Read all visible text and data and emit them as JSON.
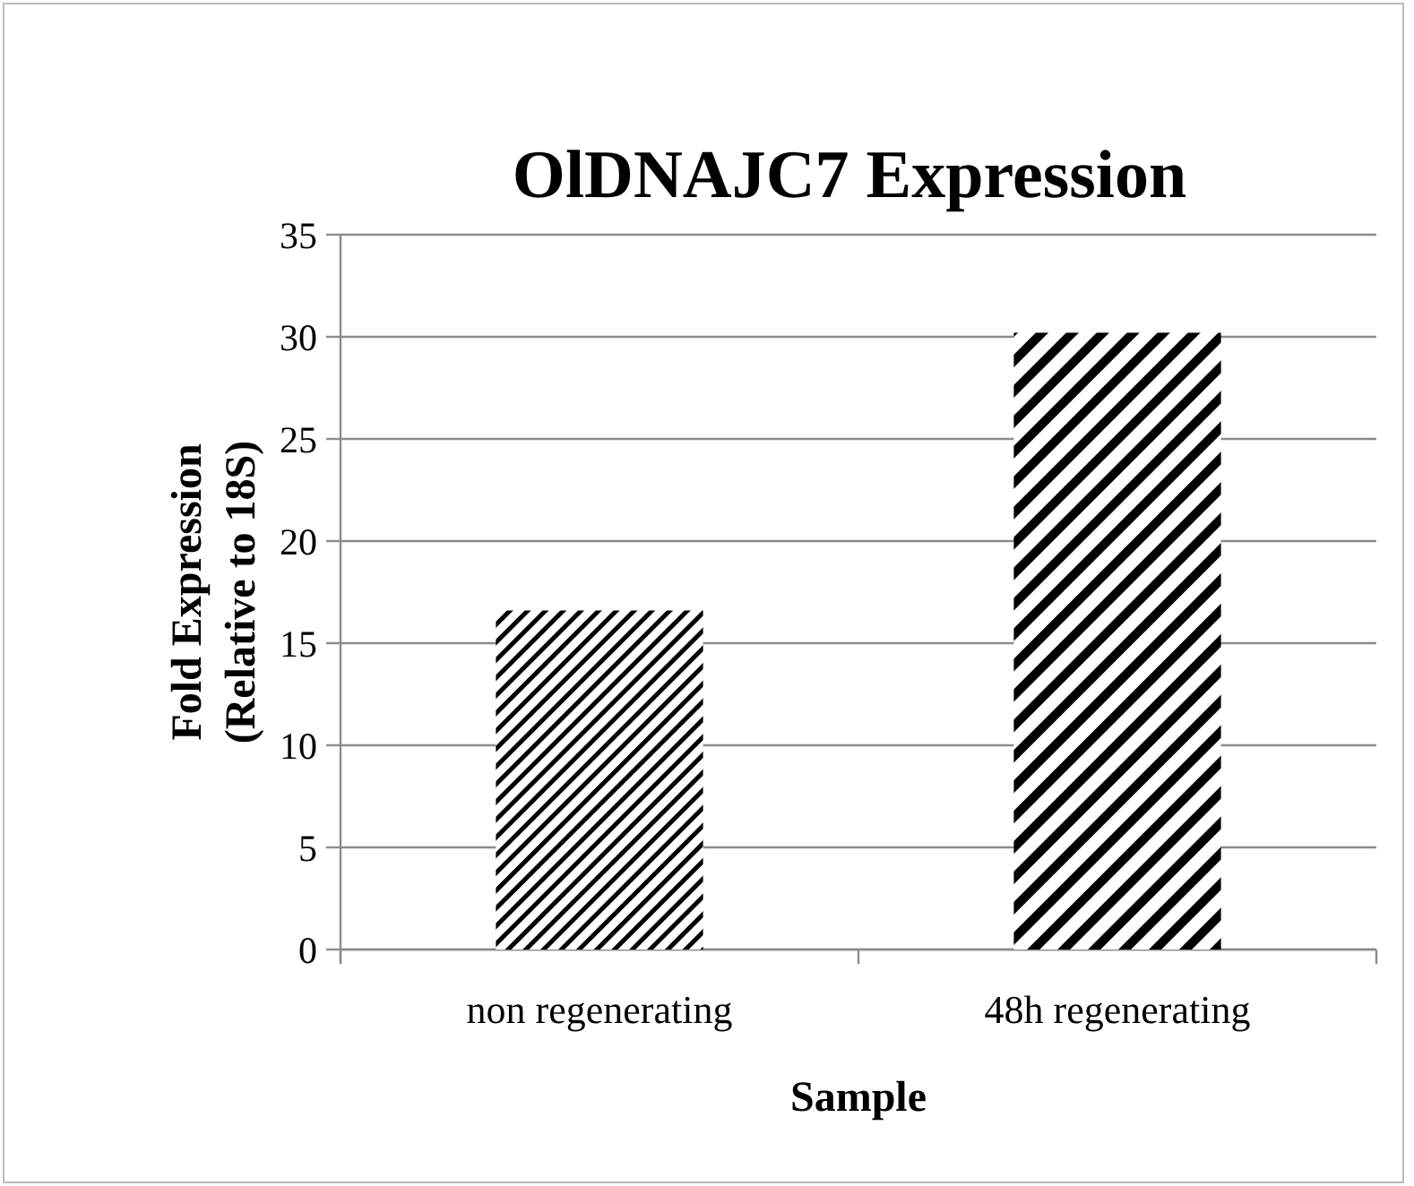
{
  "chart_data": {
    "type": "bar",
    "title": "OlDNAJC7 Expression",
    "xlabel": "Sample",
    "ylabel": "Fold Expression (Relative to 18S)",
    "categories": [
      "non regenerating",
      "48h regenerating"
    ],
    "values": [
      16.6,
      30.2
    ],
    "colors": [
      "#000000",
      "#000000"
    ],
    "ylim": [
      0,
      35
    ],
    "yticks": [
      0,
      5,
      10,
      15,
      20,
      25,
      30,
      35
    ],
    "grid": "y"
  }
}
